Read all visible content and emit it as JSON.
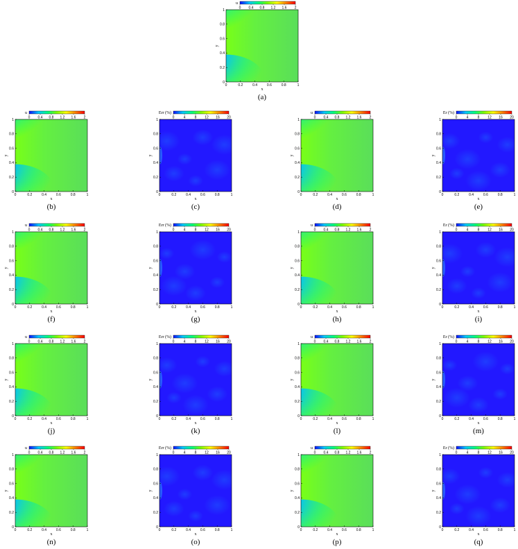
{
  "figure": {
    "colormap": [
      "#1010ff",
      "#00c8ff",
      "#00ff80",
      "#80ff00",
      "#ffff00",
      "#ff8000",
      "#ff0000"
    ],
    "axis_ticks": [
      "0",
      "0.2",
      "0.4",
      "0.6",
      "0.8",
      "1"
    ],
    "x_label": "x",
    "y_label": "y"
  },
  "chart_data": [
    {
      "id": "a",
      "caption": "(a)",
      "type": "heatmap",
      "variable_label": "u",
      "colorbar_ticks": [
        "0",
        "0.4",
        "0.8",
        "1.2",
        "1.6",
        "2"
      ],
      "field": "velocity",
      "xlim": [
        0,
        1
      ],
      "ylim": [
        0,
        1
      ],
      "clim": [
        0,
        2
      ]
    },
    {
      "id": "b",
      "caption": "(b)",
      "type": "heatmap",
      "variable_label": "u",
      "colorbar_ticks": [
        "0",
        "0.4",
        "0.8",
        "1.2",
        "1.6",
        "2"
      ],
      "field": "velocity",
      "xlim": [
        0,
        1
      ],
      "ylim": [
        0,
        1
      ],
      "clim": [
        0,
        2
      ]
    },
    {
      "id": "c",
      "caption": "(c)",
      "type": "heatmap",
      "variable_label": "Err (%)",
      "colorbar_ticks": [
        "0",
        "4",
        "8",
        "12",
        "16",
        "20"
      ],
      "field": "error",
      "xlim": [
        0,
        1
      ],
      "ylim": [
        0,
        1
      ],
      "clim": [
        0,
        20
      ]
    },
    {
      "id": "d",
      "caption": "(d)",
      "type": "heatmap",
      "variable_label": "u",
      "colorbar_ticks": [
        "0",
        "0.4",
        "0.8",
        "1.2",
        "1.6",
        "2"
      ],
      "field": "velocity",
      "xlim": [
        0,
        1
      ],
      "ylim": [
        0,
        1
      ],
      "clim": [
        0,
        2
      ]
    },
    {
      "id": "e",
      "caption": "(e)",
      "type": "heatmap",
      "variable_label": "Er (%)",
      "colorbar_ticks": [
        "0",
        "4",
        "8",
        "12",
        "16",
        "20"
      ],
      "field": "error",
      "xlim": [
        0,
        1
      ],
      "ylim": [
        0,
        1
      ],
      "clim": [
        0,
        20
      ]
    },
    {
      "id": "f",
      "caption": "(f)",
      "type": "heatmap",
      "variable_label": "u",
      "colorbar_ticks": [
        "0",
        "0.4",
        "0.8",
        "1.2",
        "1.6",
        "2"
      ],
      "field": "velocity",
      "xlim": [
        0,
        1
      ],
      "ylim": [
        0,
        1
      ],
      "clim": [
        0,
        2
      ]
    },
    {
      "id": "g",
      "caption": "(g)",
      "type": "heatmap",
      "variable_label": "Err (%)",
      "colorbar_ticks": [
        "0",
        "4",
        "8",
        "12",
        "16",
        "20"
      ],
      "field": "error",
      "xlim": [
        0,
        1
      ],
      "ylim": [
        0,
        1
      ],
      "clim": [
        0,
        20
      ]
    },
    {
      "id": "h",
      "caption": "(h)",
      "type": "heatmap",
      "variable_label": "u",
      "colorbar_ticks": [
        "0",
        "0.4",
        "0.8",
        "1.2",
        "1.6",
        "2"
      ],
      "field": "velocity",
      "xlim": [
        0,
        1
      ],
      "ylim": [
        0,
        1
      ],
      "clim": [
        0,
        2
      ]
    },
    {
      "id": "i",
      "caption": "(i)",
      "type": "heatmap",
      "variable_label": "Er (%)",
      "colorbar_ticks": [
        "0",
        "4",
        "8",
        "12",
        "16",
        "20"
      ],
      "field": "error",
      "xlim": [
        0,
        1
      ],
      "ylim": [
        0,
        1
      ],
      "clim": [
        0,
        20
      ]
    },
    {
      "id": "j",
      "caption": "(j)",
      "type": "heatmap",
      "variable_label": "u",
      "colorbar_ticks": [
        "0",
        "0.4",
        "0.8",
        "1.2",
        "1.6",
        "2"
      ],
      "field": "velocity",
      "xlim": [
        0,
        1
      ],
      "ylim": [
        0,
        1
      ],
      "clim": [
        0,
        2
      ]
    },
    {
      "id": "k",
      "caption": "(k)",
      "type": "heatmap",
      "variable_label": "Err (%)",
      "colorbar_ticks": [
        "0",
        "4",
        "8",
        "12",
        "16",
        "20"
      ],
      "field": "error",
      "xlim": [
        0,
        1
      ],
      "ylim": [
        0,
        1
      ],
      "clim": [
        0,
        20
      ]
    },
    {
      "id": "l",
      "caption": "(l)",
      "type": "heatmap",
      "variable_label": "u",
      "colorbar_ticks": [
        "0",
        "0.4",
        "0.8",
        "1.2",
        "1.6",
        "2"
      ],
      "field": "velocity",
      "xlim": [
        0,
        1
      ],
      "ylim": [
        0,
        1
      ],
      "clim": [
        0,
        2
      ]
    },
    {
      "id": "m",
      "caption": "(m)",
      "type": "heatmap",
      "variable_label": "Er (%)",
      "colorbar_ticks": [
        "0",
        "4",
        "8",
        "12",
        "16",
        "20"
      ],
      "field": "error",
      "xlim": [
        0,
        1
      ],
      "ylim": [
        0,
        1
      ],
      "clim": [
        0,
        20
      ]
    },
    {
      "id": "n",
      "caption": "(n)",
      "type": "heatmap",
      "variable_label": "u",
      "colorbar_ticks": [
        "0",
        "0.4",
        "0.8",
        "1.2",
        "1.6",
        "2"
      ],
      "field": "velocity",
      "xlim": [
        0,
        1
      ],
      "ylim": [
        0,
        1
      ],
      "clim": [
        0,
        2
      ]
    },
    {
      "id": "o",
      "caption": "(o)",
      "type": "heatmap",
      "variable_label": "Err (%)",
      "colorbar_ticks": [
        "0",
        "4",
        "8",
        "12",
        "16",
        "20"
      ],
      "field": "error",
      "xlim": [
        0,
        1
      ],
      "ylim": [
        0,
        1
      ],
      "clim": [
        0,
        20
      ]
    },
    {
      "id": "p",
      "caption": "(p)",
      "type": "heatmap",
      "variable_label": "u",
      "colorbar_ticks": [
        "0",
        "0.4",
        "0.8",
        "1.2",
        "1.6",
        "2"
      ],
      "field": "velocity",
      "xlim": [
        0,
        1
      ],
      "ylim": [
        0,
        1
      ],
      "clim": [
        0,
        2
      ]
    },
    {
      "id": "q",
      "caption": "(q)",
      "type": "heatmap",
      "variable_label": "Er (%)",
      "colorbar_ticks": [
        "0",
        "4",
        "8",
        "12",
        "16",
        "20"
      ],
      "field": "error",
      "xlim": [
        0,
        1
      ],
      "ylim": [
        0,
        1
      ],
      "clim": [
        0,
        20
      ]
    }
  ]
}
